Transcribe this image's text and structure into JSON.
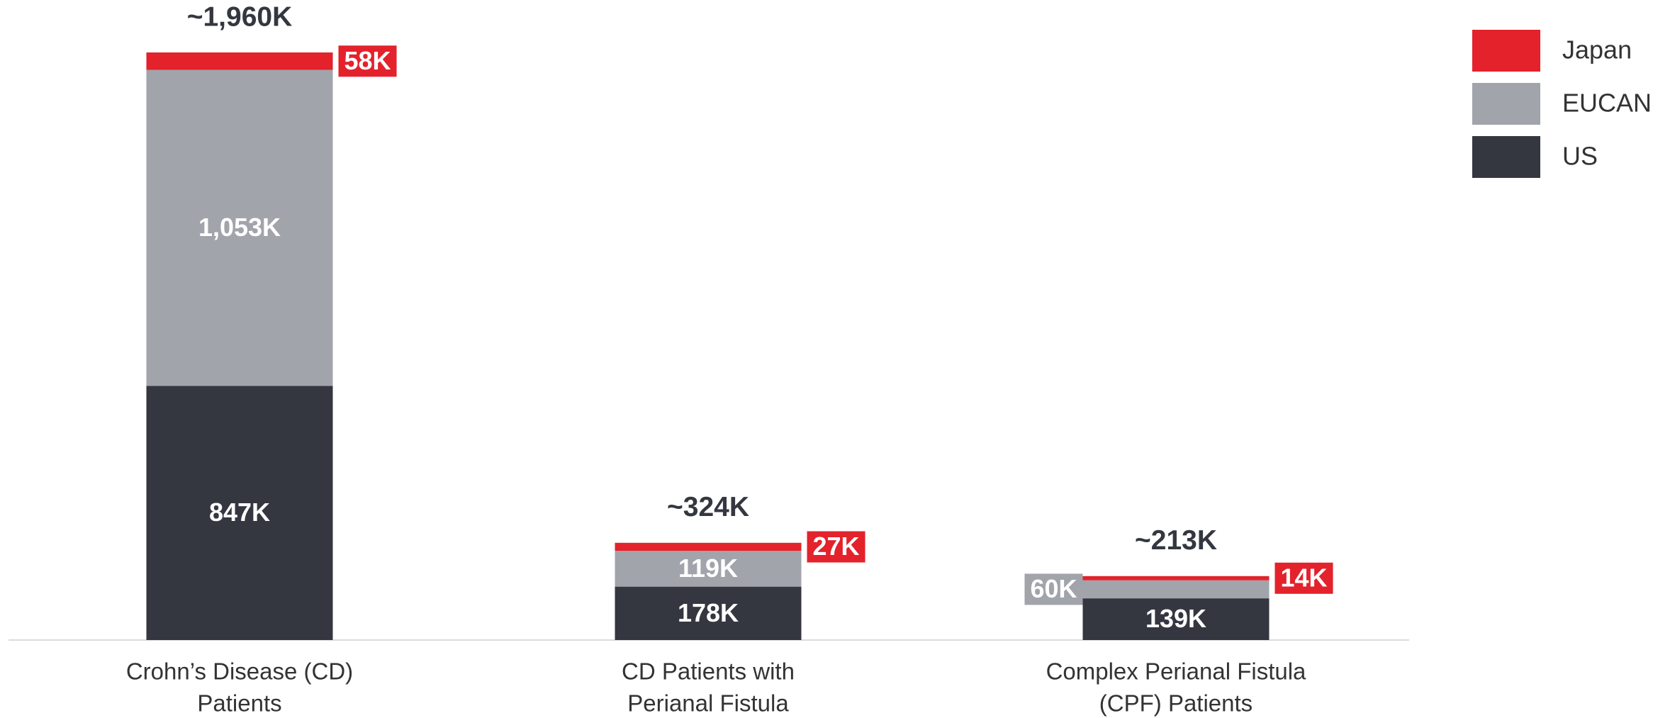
{
  "chart_data": {
    "type": "stacked_bar",
    "categories": [
      [
        "Crohn’s Disease (CD)",
        "Patients"
      ],
      [
        "CD Patients with",
        "Perianal Fistula"
      ],
      [
        "Complex Perianal Fistula",
        "(CPF) Patients"
      ]
    ],
    "series": [
      {
        "name": "US",
        "color": "#343740",
        "values": [
          847,
          178,
          139
        ],
        "value_labels": [
          "847K",
          "178K",
          "139K"
        ]
      },
      {
        "name": "EUCAN",
        "color": "#a2a4ab",
        "values": [
          1053,
          119,
          60
        ],
        "value_labels": [
          "1,053K",
          "119K",
          "60K"
        ]
      },
      {
        "name": "Japan",
        "color": "#e3222b",
        "values": [
          58,
          27,
          14
        ],
        "value_labels": [
          "58K",
          "27K",
          "14K"
        ]
      }
    ],
    "total_labels": [
      "~1,960K",
      "~324K",
      "~213K"
    ],
    "legend": "top-right"
  }
}
